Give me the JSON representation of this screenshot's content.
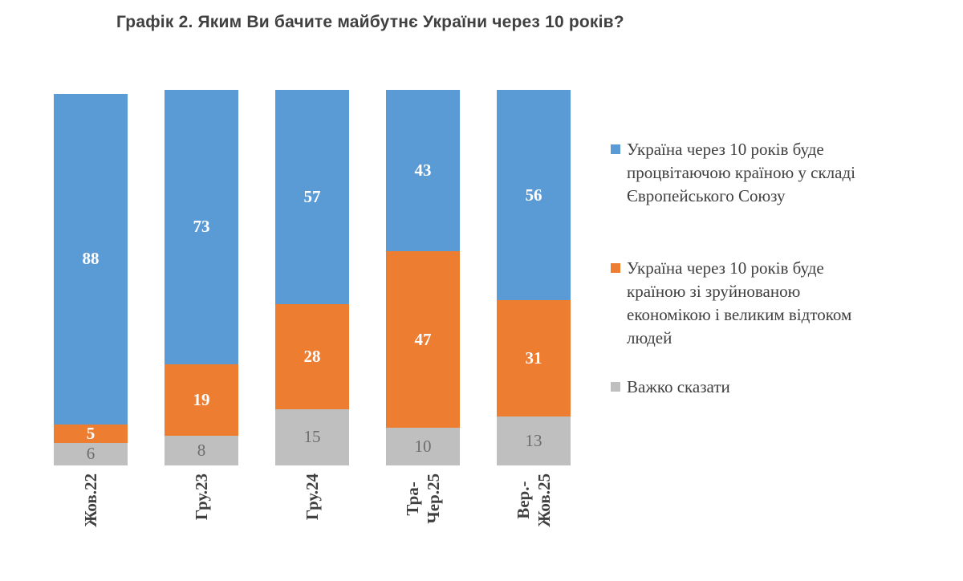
{
  "title": "Графік 2. Яким Ви бачите майбутнє України через 10 років?",
  "colors": {
    "title_text": "#404040",
    "axis_text": "#404040",
    "series_blue": "#5B9BD5",
    "series_orange": "#ED7D31",
    "series_gray": "#BFBFBF"
  },
  "chart_data": {
    "type": "bar",
    "stacked": true,
    "orientation": "vertical",
    "grid": false,
    "legend_position": "right",
    "ylim": [
      0,
      100
    ],
    "categories": [
      "Жов.22",
      "Гру.23",
      "Гру.24",
      "Тра-\nЧер.25",
      "Вер.-\nЖов.25"
    ],
    "series": [
      {
        "name": "Україна через 10 років буде процвітаючою країною у складі Європейського Союзу",
        "legend_text": "Україна через 10 років буде\nпроцвітаючою країною у складі\nЄвропейського Союзу",
        "color": "#5B9BD5",
        "value_label_color": "#FFFFFF",
        "value_label_weight": "bold",
        "values": [
          88,
          73,
          57,
          43,
          56
        ]
      },
      {
        "name": "Україна через 10 років буде країною зі зруйнованою економікою і великим відтоком людей",
        "legend_text": "Україна через 10 років буде\nкраїною зі зруйнованою\nекономікою і великим відтоком\nлюдей",
        "color": "#ED7D31",
        "value_label_color": "#FFFFFF",
        "value_label_weight": "bold",
        "values": [
          5,
          19,
          28,
          47,
          31
        ]
      },
      {
        "name": "Важко сказати",
        "legend_text": "Важко сказати",
        "color": "#BFBFBF",
        "value_label_color": "#6D6D6D",
        "value_label_weight": "normal",
        "values": [
          6,
          8,
          15,
          10,
          13
        ]
      }
    ]
  }
}
